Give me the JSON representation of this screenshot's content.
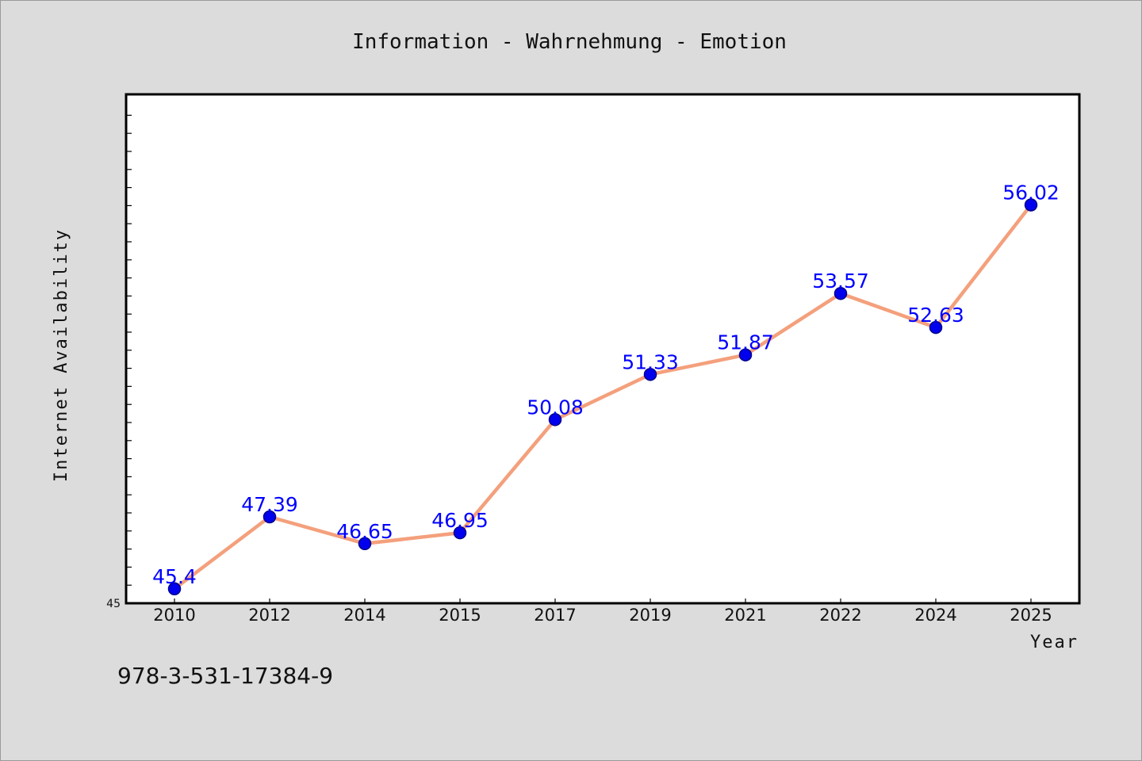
{
  "chart_data": {
    "type": "line",
    "title": "Information - Wahrnehmung - Emotion",
    "xlabel": "Year",
    "ylabel": "Internet Availability",
    "categories": [
      "2010",
      "2012",
      "2014",
      "2015",
      "2017",
      "2019",
      "2021",
      "2022",
      "2024",
      "2025"
    ],
    "values": [
      45.4,
      47.39,
      46.65,
      46.95,
      50.08,
      51.33,
      51.87,
      53.57,
      52.63,
      56.02
    ],
    "value_labels": [
      "45.4",
      "47.39",
      "46.65",
      "46.95",
      "50.08",
      "51.33",
      "51.87",
      "53.57",
      "52.63",
      "56.02"
    ],
    "ylim": [
      45,
      60
    ],
    "y_tick_labels": [
      "45"
    ],
    "grid": false,
    "legend": "none",
    "line_color": "#f4a07c",
    "marker_color": "#0000ee",
    "label_color": "#0000ff"
  },
  "footer_text": "978-3-531-17384-9"
}
